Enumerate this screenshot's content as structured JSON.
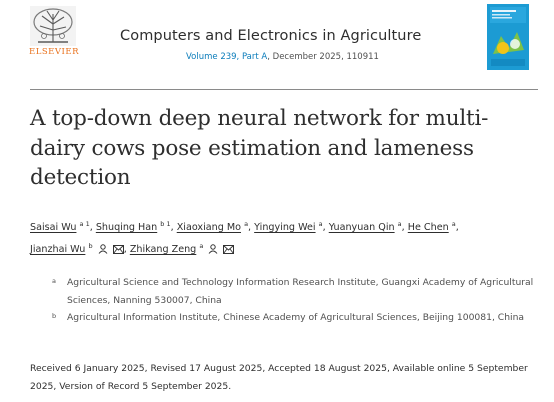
{
  "header": {
    "publisher": "ELSEVIER",
    "journal_title": "Computers and Electronics in Agriculture",
    "volume_link": "Volume 239, Part A",
    "issue_rest": ", December 2025, 110911"
  },
  "article": {
    "title": "A top-down deep neural network for multi-dairy cows pose estimation and lameness detection"
  },
  "authors": [
    {
      "name": "Saisai Wu",
      "sup": "a 1"
    },
    {
      "name": "Shuqing Han",
      "sup": "b 1"
    },
    {
      "name": "Xiaoxiang Mo",
      "sup": "a"
    },
    {
      "name": "Yingying Wei",
      "sup": "a"
    },
    {
      "name": "Yuanyuan Qin",
      "sup": "a"
    },
    {
      "name": "He Chen",
      "sup": "a"
    },
    {
      "name": "Jianzhai Wu",
      "sup": "b"
    },
    {
      "name": "Zhikang Zeng",
      "sup": "a"
    }
  ],
  "affiliations": [
    {
      "label": "a",
      "text": "Agricultural Science and Technology Information Research Institute, Guangxi Academy of Agricultural Sciences, Nanning 530007, China"
    },
    {
      "label": "b",
      "text": "Agricultural Information Institute, Chinese Academy of Agricultural Sciences, Beijing 100081, China"
    }
  ],
  "history": "Received 6 January 2025, Revised 17 August 2025, Accepted 18 August 2025, Available online 5 September 2025, Version of Record 5 September 2025.",
  "colors": {
    "elsevier_orange": "#e9711c",
    "link_blue": "#0c7dbb",
    "cover_blue": "#1c9bd3"
  }
}
